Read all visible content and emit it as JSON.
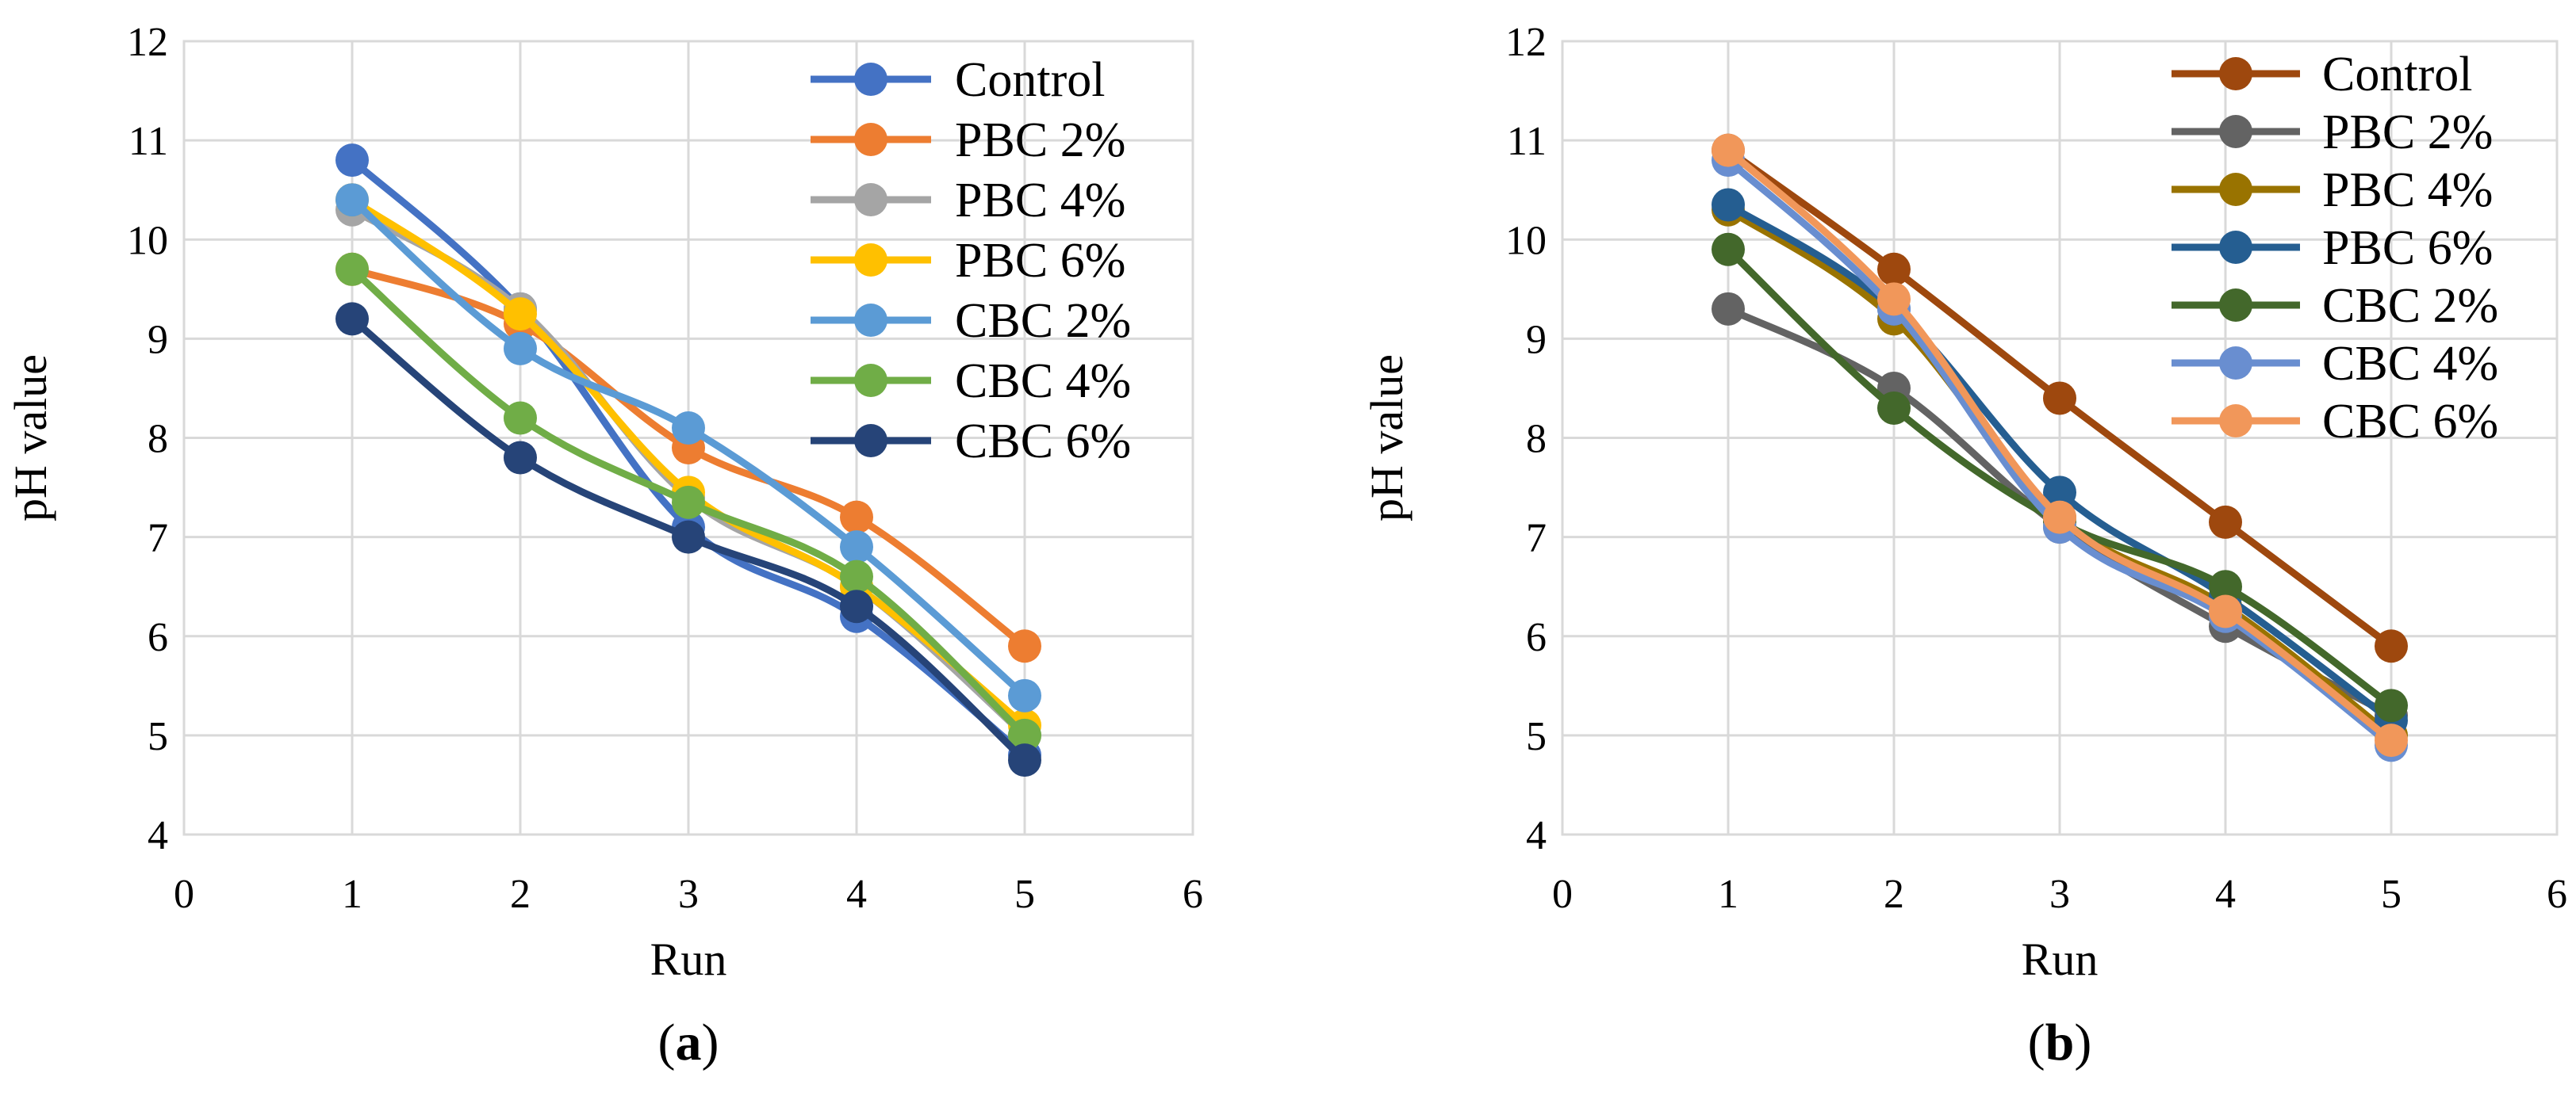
{
  "chart_data": [
    {
      "type": "line",
      "panel": "a",
      "caption": {
        "open": "(",
        "letter": "a",
        "close": ")"
      },
      "xlabel": "Run",
      "ylabel": "pH value",
      "xlim": [
        0,
        6
      ],
      "ylim": [
        4,
        12
      ],
      "xticks": [
        0,
        1,
        2,
        3,
        4,
        5,
        6
      ],
      "yticks": [
        4,
        5,
        6,
        7,
        8,
        9,
        10,
        11,
        12
      ],
      "grid": true,
      "legend": "top-right",
      "x": [
        1,
        2,
        3,
        4,
        5
      ],
      "series": [
        {
          "name": "Control",
          "color": "#4472c4",
          "values": [
            10.8,
            9.3,
            7.1,
            6.2,
            4.8
          ]
        },
        {
          "name": "PBC 2%",
          "color": "#ed7d31",
          "values": [
            9.7,
            9.15,
            7.9,
            7.2,
            5.9
          ]
        },
        {
          "name": "PBC 4%",
          "color": "#a5a5a5",
          "values": [
            10.3,
            9.3,
            7.4,
            6.5,
            5.0
          ]
        },
        {
          "name": "PBC 6%",
          "color": "#ffc000",
          "values": [
            10.4,
            9.25,
            7.45,
            6.5,
            5.1
          ]
        },
        {
          "name": "CBC 2%",
          "color": "#5b9bd5",
          "values": [
            10.4,
            8.9,
            8.1,
            6.9,
            5.4
          ]
        },
        {
          "name": "CBC 4%",
          "color": "#70ad47",
          "values": [
            9.7,
            8.2,
            7.35,
            6.6,
            5.0
          ]
        },
        {
          "name": "CBC 6%",
          "color": "#264478",
          "values": [
            9.2,
            7.8,
            7.0,
            6.3,
            4.75
          ]
        }
      ]
    },
    {
      "type": "line",
      "panel": "b",
      "caption": {
        "open": "(",
        "letter": "b",
        "close": ")"
      },
      "xlabel": "Run",
      "ylabel": "pH value",
      "xlim": [
        0,
        6
      ],
      "ylim": [
        4,
        12
      ],
      "xticks": [
        0,
        1,
        2,
        3,
        4,
        5,
        6
      ],
      "yticks": [
        4,
        5,
        6,
        7,
        8,
        9,
        10,
        11,
        12
      ],
      "grid": true,
      "legend": "top-right",
      "x": [
        1,
        2,
        3,
        4,
        5
      ],
      "series": [
        {
          "name": "Control",
          "color": "#9e480e",
          "values": [
            10.9,
            9.7,
            8.4,
            7.15,
            5.9
          ]
        },
        {
          "name": "PBC 2%",
          "color": "#636363",
          "values": [
            9.3,
            8.5,
            7.1,
            6.1,
            5.2
          ]
        },
        {
          "name": "PBC 4%",
          "color": "#997300",
          "values": [
            10.3,
            9.2,
            7.2,
            6.3,
            5.0
          ]
        },
        {
          "name": "PBC 6%",
          "color": "#255e91",
          "values": [
            10.35,
            9.3,
            7.45,
            6.4,
            5.15
          ]
        },
        {
          "name": "CBC 2%",
          "color": "#43682b",
          "values": [
            9.9,
            8.3,
            7.15,
            6.5,
            5.3
          ]
        },
        {
          "name": "CBC 4%",
          "color": "#698ed0",
          "values": [
            10.8,
            9.3,
            7.1,
            6.2,
            4.9
          ]
        },
        {
          "name": "CBC 6%",
          "color": "#f1975a",
          "values": [
            10.9,
            9.4,
            7.2,
            6.25,
            4.95
          ]
        }
      ]
    }
  ]
}
